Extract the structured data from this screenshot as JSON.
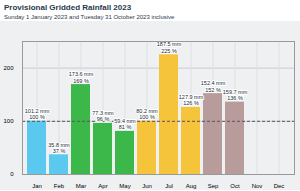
{
  "chart_data": {
    "type": "bar",
    "title": "Provisional Gridded Rainfall 2023",
    "subtitle": "Sunday 1 January 2023 and Tuesday 31 October 2023 inclusive",
    "categories": [
      "Jan",
      "Feb",
      "Mar",
      "Apr",
      "May",
      "Jun",
      "Jul",
      "Aug",
      "Sep",
      "Oct",
      "Nov",
      "Dec"
    ],
    "values": [
      100,
      37,
      169,
      96,
      81,
      100,
      225,
      126,
      152,
      136,
      null,
      null
    ],
    "value_labels": [
      "100 %",
      "37 %",
      "169 %",
      "96 %",
      "81 %",
      "100 %",
      "225 %",
      "126 %",
      "152 %",
      "136 %",
      null,
      null
    ],
    "mm_labels": [
      "101.2 mm",
      "35.8 mm",
      "173.6 mm",
      "77.3 mm",
      "59.4 mm",
      "80.2 mm",
      "187.5 mm",
      "127.9 mm",
      "152.4 mm",
      "159.7 mm",
      null,
      null
    ],
    "colors": [
      "#5bc8f0",
      "#5bc8f0",
      "#3cb84a",
      "#3cb84a",
      "#3cb84a",
      "#f5c43a",
      "#f5c43a",
      "#f5c43a",
      "#b89c9c",
      "#b89c9c",
      "#b89c9c",
      "#b89c9c"
    ],
    "reference": 100,
    "ylim": [
      0,
      250
    ],
    "yticks": [
      0,
      100,
      200
    ],
    "grid": true,
    "data_labels": true
  }
}
